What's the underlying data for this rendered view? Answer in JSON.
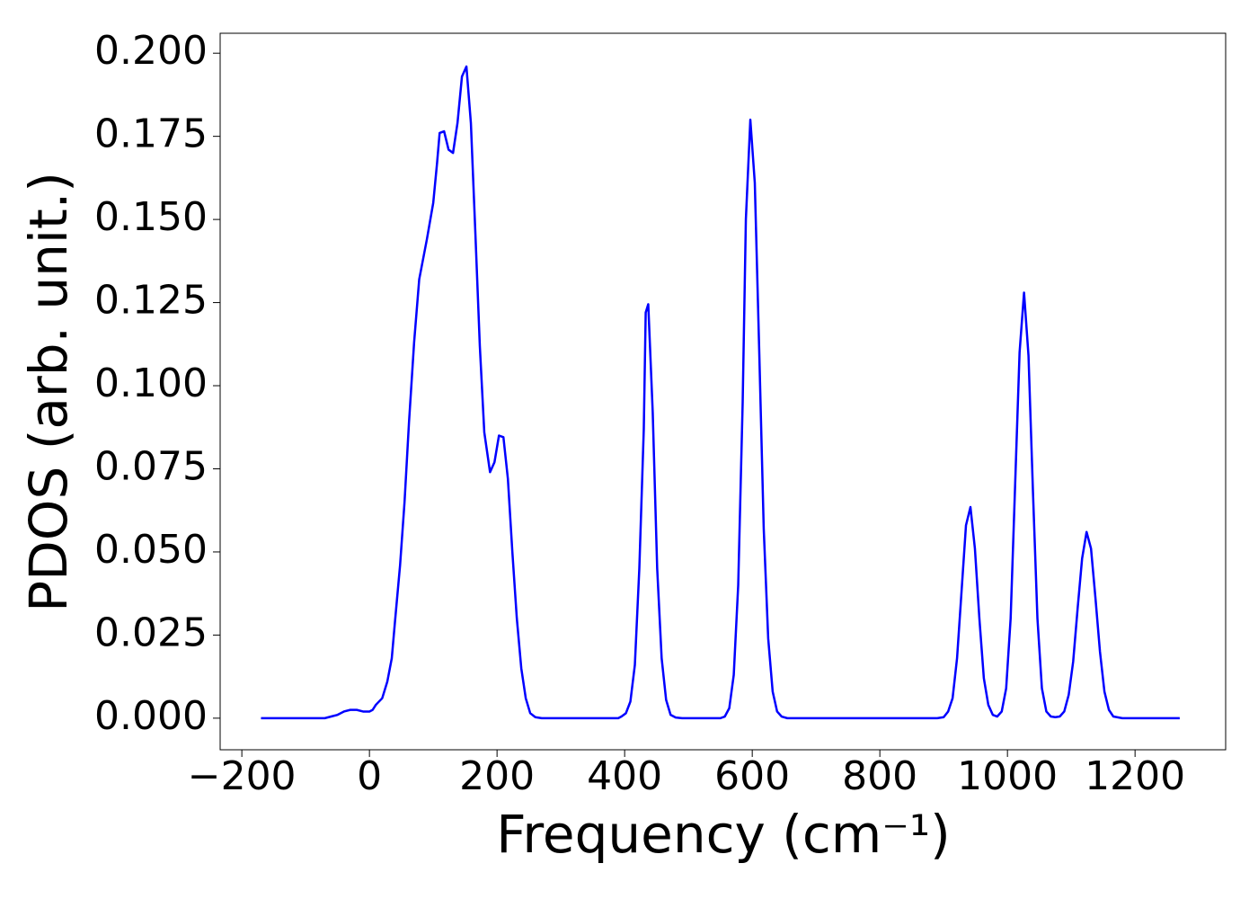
{
  "chart_data": {
    "type": "line",
    "xlabel": "Frequency (cm⁻¹)",
    "ylabel": "PDOS (arb. unit.)",
    "x": [
      -170,
      -150,
      -130,
      -110,
      -90,
      -70,
      -60,
      -50,
      -40,
      -30,
      -20,
      -10,
      0,
      5,
      10,
      20,
      28,
      35,
      40,
      48,
      55,
      62,
      70,
      78,
      90,
      100,
      106,
      110,
      117,
      124,
      131,
      138,
      145,
      152,
      159,
      166,
      173,
      180,
      189,
      196,
      203,
      210,
      217,
      224,
      231,
      238,
      245,
      252,
      260,
      270,
      390,
      395,
      402,
      409,
      416,
      423,
      430,
      433,
      437,
      444,
      451,
      458,
      465,
      472,
      480,
      490,
      550,
      557,
      564,
      571,
      578,
      585,
      590,
      597,
      604,
      611,
      618,
      625,
      632,
      639,
      646,
      655,
      890,
      900,
      907,
      914,
      921,
      928,
      935,
      942,
      949,
      956,
      963,
      970,
      977,
      984,
      991,
      998,
      1005,
      1012,
      1019,
      1026,
      1033,
      1040,
      1047,
      1054,
      1061,
      1068,
      1075,
      1082,
      1089,
      1096,
      1103,
      1110,
      1117,
      1124,
      1131,
      1138,
      1145,
      1152,
      1159,
      1166,
      1180,
      1270
    ],
    "series": [
      {
        "color": "#0000ff",
        "values": [
          0,
          0,
          0,
          0,
          0,
          0,
          0.0005,
          0.001,
          0.002,
          0.0025,
          0.0025,
          0.002,
          0.002,
          0.0025,
          0.004,
          0.006,
          0.011,
          0.018,
          0.029,
          0.046,
          0.065,
          0.089,
          0.113,
          0.132,
          0.144,
          0.155,
          0.167,
          0.176,
          0.1765,
          0.171,
          0.17,
          0.179,
          0.193,
          0.196,
          0.179,
          0.146,
          0.112,
          0.086,
          0.074,
          0.077,
          0.085,
          0.0845,
          0.072,
          0.05,
          0.03,
          0.015,
          0.006,
          0.0015,
          0.0003,
          0,
          0,
          0.0005,
          0.0015,
          0.005,
          0.016,
          0.045,
          0.087,
          0.122,
          0.1245,
          0.092,
          0.045,
          0.018,
          0.0055,
          0.001,
          0.0002,
          0,
          0,
          0.0005,
          0.003,
          0.013,
          0.04,
          0.095,
          0.15,
          0.18,
          0.161,
          0.11,
          0.057,
          0.024,
          0.008,
          0.002,
          0.0005,
          0,
          0,
          0.0003,
          0.002,
          0.006,
          0.018,
          0.038,
          0.058,
          0.0635,
          0.051,
          0.03,
          0.012,
          0.004,
          0.001,
          0.0005,
          0.002,
          0.009,
          0.03,
          0.07,
          0.11,
          0.128,
          0.109,
          0.068,
          0.03,
          0.009,
          0.002,
          0.0005,
          0.0003,
          0.0005,
          0.002,
          0.007,
          0.017,
          0.033,
          0.048,
          0.056,
          0.051,
          0.036,
          0.02,
          0.008,
          0.0025,
          0.0005,
          0,
          0
        ]
      }
    ],
    "xlim": [
      -234,
      1342
    ],
    "ylim": [
      -0.0095,
      0.206
    ],
    "xticks": [
      {
        "value": -200,
        "label": "−200"
      },
      0,
      200,
      400,
      600,
      800,
      1000,
      1200
    ],
    "yticks": [
      {
        "value": 0,
        "label": "0.000"
      },
      {
        "value": 0.025,
        "label": "0.025"
      },
      {
        "value": 0.05,
        "label": "0.050"
      },
      {
        "value": 0.075,
        "label": "0.075"
      },
      {
        "value": 0.1,
        "label": "0.100"
      },
      {
        "value": 0.125,
        "label": "0.125"
      },
      {
        "value": 0.15,
        "label": "0.150"
      },
      {
        "value": 0.175,
        "label": "0.175"
      },
      {
        "value": 0.2,
        "label": "0.200"
      }
    ],
    "grid": false
  }
}
